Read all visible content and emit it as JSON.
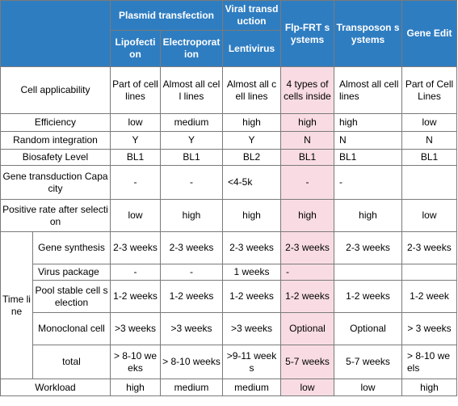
{
  "header": {
    "plasmid": "Plasmid transfection",
    "viral": "Viral transduction",
    "flp": "Flp-FRT systems",
    "transposon": "Transposon systems",
    "gene_edit": "Gene Edit",
    "lipofection": "Lipofection",
    "electroporation": "Electroporation",
    "lentivirus": "Lentivirus"
  },
  "rows": {
    "cell_applicability": {
      "label": "Cell applicability",
      "values": [
        "Part of cell lines",
        "Almost all cell lines",
        "Almost all cell lines",
        "4 types of cells inside",
        "Almost all cell lines",
        "Part of Cell Lines"
      ]
    },
    "efficiency": {
      "label": "Efficiency",
      "values": [
        "low",
        "medium",
        "high",
        "high",
        "high",
        "low"
      ]
    },
    "random_integration": {
      "label": "Random integration",
      "values": [
        "Y",
        "Y",
        "Y",
        "N",
        "N",
        "N"
      ]
    },
    "biosafety": {
      "label": "Biosafety Level",
      "values": [
        "BL1",
        "BL1",
        "BL2",
        "BL1",
        "BL1",
        "BL1"
      ]
    },
    "capacity": {
      "label": "Gene transduction Capacity",
      "values": [
        "-",
        "-",
        "<4-5k",
        "-",
        "-",
        ""
      ]
    },
    "positive_rate": {
      "label": "Positive rate after selection",
      "values": [
        "low",
        "high",
        "high",
        "high",
        "high",
        "low"
      ]
    },
    "time_line": {
      "label": "Time line",
      "gene_synthesis": {
        "label": "Gene synthesis",
        "values": [
          "2-3 weeks",
          "2-3 weeks",
          "2-3 weeks",
          "2-3 weeks",
          "2-3 weeks",
          "2-3 weeks"
        ]
      },
      "virus_package": {
        "label": "Virus package",
        "values": [
          "-",
          "-",
          "1 weeks",
          "-",
          "",
          ""
        ]
      },
      "pool_stable": {
        "label": "Pool stable cell selection",
        "values": [
          "1-2 weeks",
          "1-2 weeks",
          "1-2 weeks",
          "1-2 weeks",
          "1-2 weeks",
          "1-2 week"
        ]
      },
      "monoclonal": {
        "label": "Monoclonal cell",
        "values": [
          ">3 weeks",
          ">3 weeks",
          ">3 weeks",
          "Optional",
          "Optional",
          "> 3 weeks"
        ]
      },
      "total": {
        "label": "total",
        "values": [
          "> 8-10 weeks",
          "> 8-10 weeks",
          ">9-11 weeks",
          "5-7 weeks",
          "5-7 weeks",
          "> 8-10 weels"
        ]
      }
    },
    "workload": {
      "label": "Workload",
      "values": [
        "high",
        "medium",
        "medium",
        "low",
        "low",
        "high"
      ]
    }
  },
  "colors": {
    "header_bg": "#2f7dc1",
    "highlight": "#f9dce3",
    "border": "#7a7a7a"
  }
}
